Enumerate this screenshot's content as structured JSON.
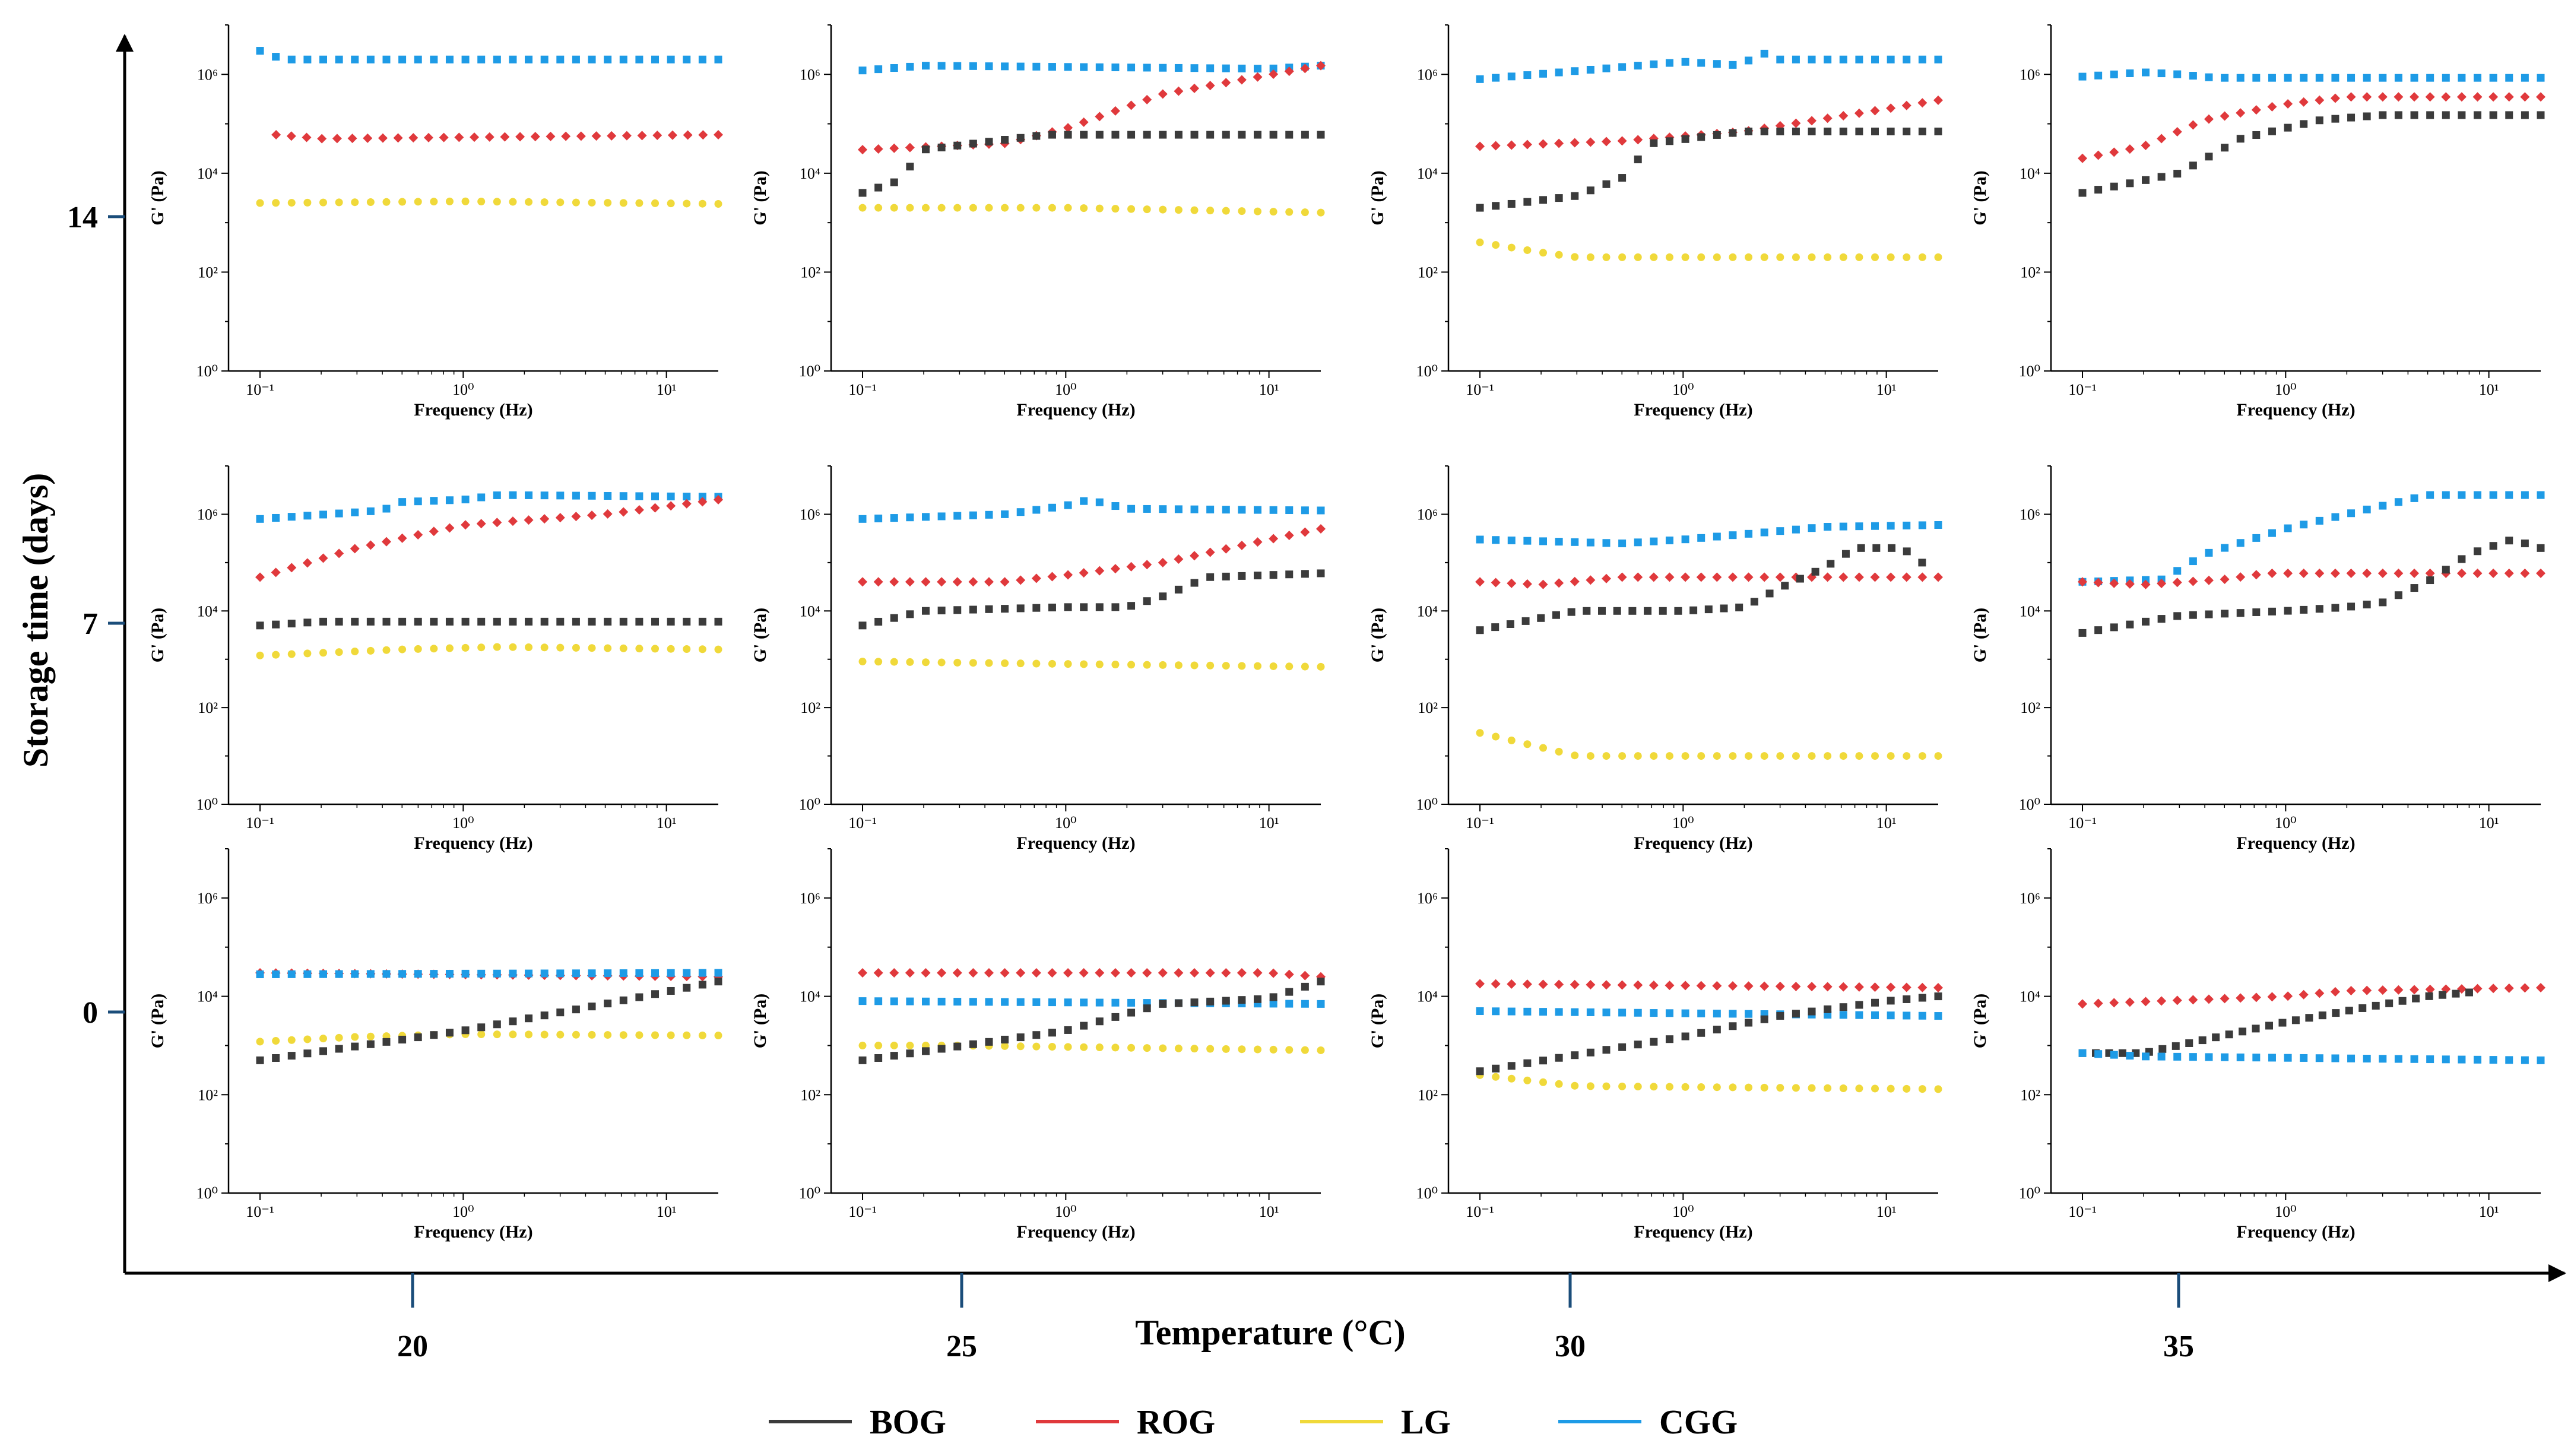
{
  "figure": {
    "ylabel": "Storage time (days)",
    "xlabel": "Temperature  (°C)",
    "storage_ticks": [
      "14",
      "7",
      "0"
    ],
    "temperature_ticks": [
      "20",
      "25",
      "30",
      "35"
    ]
  },
  "legend": [
    {
      "name": "BOG",
      "color": "#3b3b3b"
    },
    {
      "name": "ROG",
      "color": "#e0393c"
    },
    {
      "name": "LG",
      "color": "#f0d93a"
    },
    {
      "name": "CGG",
      "color": "#1e9be6"
    }
  ],
  "colors": {
    "BOG": "#3b3b3b",
    "ROG": "#e0393c",
    "LG": "#f0d93a",
    "CGG": "#1e9be6"
  },
  "marker_styles": {
    "BOG": "square",
    "ROG": "diamond",
    "LG": "circle",
    "CGG": "square"
  },
  "chart_data": [
    {
      "type": "scatter",
      "storage_time": 14,
      "temperature": 20,
      "title": "",
      "xlabel": "Frequency (Hz)",
      "ylabel": "G' (Pa)",
      "xscale": "log",
      "yscale": "log",
      "xlim": [
        0.07,
        18
      ],
      "ylim": [
        1,
        10000000
      ],
      "series": [
        {
          "name": "CGG",
          "x": [
            0.1,
            0.13,
            18
          ],
          "y": [
            3000000,
            2000000,
            2000000
          ]
        },
        {
          "name": "ROG",
          "x": [
            0.12,
            0.2,
            18
          ],
          "y": [
            60000,
            50000,
            60000
          ]
        },
        {
          "name": "LG",
          "x": [
            0.1,
            1.0,
            18
          ],
          "y": [
            2500,
            2700,
            2400
          ]
        }
      ]
    },
    {
      "type": "scatter",
      "storage_time": 14,
      "temperature": 25,
      "title": "",
      "xlabel": "Frequency (Hz)",
      "ylabel": "G' (Pa)",
      "xscale": "log",
      "yscale": "log",
      "xlim": [
        0.07,
        18
      ],
      "ylim": [
        1,
        10000000
      ],
      "series": [
        {
          "name": "CGG",
          "x": [
            0.1,
            0.2,
            10,
            18
          ],
          "y": [
            1200000,
            1500000,
            1300000,
            1500000
          ]
        },
        {
          "name": "ROG",
          "x": [
            0.1,
            0.5,
            1,
            3,
            18
          ],
          "y": [
            30000,
            40000,
            80000,
            400000,
            1500000
          ]
        },
        {
          "name": "BOG",
          "x": [
            0.1,
            0.15,
            0.2,
            0.8,
            18
          ],
          "y": [
            4000,
            7000,
            30000,
            60000,
            60000
          ]
        },
        {
          "name": "LG",
          "x": [
            0.1,
            1,
            18
          ],
          "y": [
            2000,
            2000,
            1600
          ]
        }
      ]
    },
    {
      "type": "scatter",
      "storage_time": 14,
      "temperature": 30,
      "title": "",
      "xlabel": "Frequency (Hz)",
      "ylabel": "G' (Pa)",
      "xscale": "log",
      "yscale": "log",
      "xlim": [
        0.07,
        18
      ],
      "ylim": [
        1,
        10000000
      ],
      "series": [
        {
          "name": "CGG",
          "x": [
            0.1,
            0.4,
            1,
            2,
            2.3,
            3,
            18
          ],
          "y": [
            800000,
            1300000,
            1800000,
            1500000,
            3000000,
            2000000,
            2000000
          ]
        },
        {
          "name": "ROG",
          "x": [
            0.1,
            0.5,
            2,
            10,
            18
          ],
          "y": [
            35000,
            45000,
            70000,
            200000,
            300000
          ]
        },
        {
          "name": "BOG",
          "x": [
            0.1,
            0.3,
            0.5,
            0.7,
            2,
            18
          ],
          "y": [
            2000,
            3500,
            8000,
            40000,
            70000,
            70000
          ]
        },
        {
          "name": "LG",
          "x": [
            0.1,
            0.2,
            0.3,
            18
          ],
          "y": [
            400,
            250,
            200,
            200
          ]
        }
      ]
    },
    {
      "type": "scatter",
      "storage_time": 14,
      "temperature": 35,
      "title": "",
      "xlabel": "Frequency (Hz)",
      "ylabel": "G' (Pa)",
      "xscale": "log",
      "yscale": "log",
      "xlim": [
        0.07,
        18
      ],
      "ylim": [
        1,
        10000000
      ],
      "series": [
        {
          "name": "CGG",
          "x": [
            0.1,
            0.2,
            0.3,
            0.45,
            18
          ],
          "y": [
            900000,
            1100000,
            1000000,
            850000,
            850000
          ]
        },
        {
          "name": "ROG",
          "x": [
            0.1,
            0.2,
            0.4,
            1,
            2,
            18
          ],
          "y": [
            20000,
            35000,
            120000,
            250000,
            350000,
            350000
          ]
        },
        {
          "name": "BOG",
          "x": [
            0.1,
            0.3,
            0.6,
            1.5,
            3,
            18
          ],
          "y": [
            4000,
            10000,
            50000,
            120000,
            150000,
            150000
          ]
        }
      ]
    },
    {
      "type": "scatter",
      "storage_time": 7,
      "temperature": 20,
      "title": "",
      "xlabel": "Frequency (Hz)",
      "ylabel": "G' (Pa)",
      "xscale": "log",
      "yscale": "log",
      "xlim": [
        0.07,
        18
      ],
      "ylim": [
        1,
        10000000
      ],
      "series": [
        {
          "name": "CGG",
          "x": [
            0.1,
            0.4,
            0.5,
            1,
            1.5,
            18
          ],
          "y": [
            800000,
            1200000,
            1800000,
            2000000,
            2500000,
            2300000
          ]
        },
        {
          "name": "ROG",
          "x": [
            0.1,
            0.3,
            1,
            5,
            18
          ],
          "y": [
            50000,
            200000,
            600000,
            1000000,
            2000000
          ]
        },
        {
          "name": "BOG",
          "x": [
            0.1,
            0.2,
            18
          ],
          "y": [
            5000,
            6000,
            6000
          ]
        },
        {
          "name": "LG",
          "x": [
            0.1,
            0.5,
            1.5,
            18
          ],
          "y": [
            1200,
            1600,
            1800,
            1600
          ]
        }
      ]
    },
    {
      "type": "scatter",
      "storage_time": 7,
      "temperature": 25,
      "title": "",
      "xlabel": "Frequency (Hz)",
      "ylabel": "G' (Pa)",
      "xscale": "log",
      "yscale": "log",
      "xlim": [
        0.07,
        18
      ],
      "ylim": [
        1,
        10000000
      ],
      "series": [
        {
          "name": "CGG",
          "x": [
            0.1,
            0.5,
            1,
            1.3,
            2,
            18
          ],
          "y": [
            800000,
            1000000,
            1500000,
            2000000,
            1300000,
            1200000
          ]
        },
        {
          "name": "ROG",
          "x": [
            0.1,
            0.5,
            1,
            3,
            10,
            18
          ],
          "y": [
            40000,
            40000,
            55000,
            100000,
            300000,
            500000
          ]
        },
        {
          "name": "BOG",
          "x": [
            0.1,
            0.2,
            1,
            2,
            3,
            5,
            18
          ],
          "y": [
            5000,
            10000,
            12000,
            12000,
            20000,
            50000,
            60000
          ]
        },
        {
          "name": "LG",
          "x": [
            0.1,
            1,
            18
          ],
          "y": [
            900,
            800,
            700
          ]
        }
      ]
    },
    {
      "type": "scatter",
      "storage_time": 7,
      "temperature": 30,
      "title": "",
      "xlabel": "Frequency (Hz)",
      "ylabel": "G' (Pa)",
      "xscale": "log",
      "yscale": "log",
      "xlim": [
        0.07,
        18
      ],
      "ylim": [
        1,
        10000000
      ],
      "series": [
        {
          "name": "CGG",
          "x": [
            0.1,
            0.5,
            1,
            3,
            5,
            18
          ],
          "y": [
            300000,
            250000,
            300000,
            450000,
            550000,
            600000
          ]
        },
        {
          "name": "ROG",
          "x": [
            0.1,
            0.2,
            0.5,
            18
          ],
          "y": [
            40000,
            35000,
            50000,
            50000
          ]
        },
        {
          "name": "BOG",
          "x": [
            0.1,
            0.3,
            1,
            2,
            3,
            5,
            7,
            12,
            15
          ],
          "y": [
            4000,
            10000,
            10000,
            12000,
            30000,
            80000,
            200000,
            200000,
            100000
          ]
        },
        {
          "name": "LG",
          "x": [
            0.1,
            0.2,
            0.3,
            18
          ],
          "y": [
            30,
            15,
            10,
            10
          ]
        }
      ]
    },
    {
      "type": "scatter",
      "storage_time": 7,
      "temperature": 35,
      "title": "",
      "xlabel": "Frequency (Hz)",
      "ylabel": "G' (Pa)",
      "xscale": "log",
      "yscale": "log",
      "xlim": [
        0.07,
        18
      ],
      "ylim": [
        1,
        10000000
      ],
      "series": [
        {
          "name": "CGG",
          "x": [
            0.1,
            0.25,
            0.4,
            1,
            3,
            5,
            18
          ],
          "y": [
            40000,
            45000,
            150000,
            500000,
            1500000,
            2500000,
            2500000
          ]
        },
        {
          "name": "ROG",
          "x": [
            0.1,
            0.2,
            0.5,
            0.8,
            18
          ],
          "y": [
            40000,
            35000,
            45000,
            60000,
            60000
          ]
        },
        {
          "name": "BOG",
          "x": [
            0.1,
            0.3,
            1,
            2,
            3,
            5,
            8,
            13,
            18
          ],
          "y": [
            3500,
            8000,
            10000,
            12000,
            15000,
            40000,
            150000,
            300000,
            200000
          ]
        }
      ]
    },
    {
      "type": "scatter",
      "storage_time": 0,
      "temperature": 20,
      "title": "",
      "xlabel": "Frequency (Hz)",
      "ylabel": "G' (Pa)",
      "xscale": "log",
      "yscale": "log",
      "xlim": [
        0.07,
        18
      ],
      "ylim": [
        1,
        10000000
      ],
      "series": [
        {
          "name": "ROG",
          "x": [
            0.1,
            18
          ],
          "y": [
            30000,
            25000
          ]
        },
        {
          "name": "CGG",
          "x": [
            0.1,
            18
          ],
          "y": [
            28000,
            30000
          ]
        },
        {
          "name": "LG",
          "x": [
            0.1,
            0.3,
            1,
            18
          ],
          "y": [
            1200,
            1500,
            1700,
            1600
          ]
        },
        {
          "name": "BOG",
          "x": [
            0.1,
            1,
            5,
            18
          ],
          "y": [
            500,
            2000,
            7000,
            20000
          ]
        }
      ]
    },
    {
      "type": "scatter",
      "storage_time": 0,
      "temperature": 25,
      "title": "",
      "xlabel": "Frequency (Hz)",
      "ylabel": "G' (Pa)",
      "xscale": "log",
      "yscale": "log",
      "xlim": [
        0.07,
        18
      ],
      "ylim": [
        1,
        10000000
      ],
      "series": [
        {
          "name": "ROG",
          "x": [
            0.1,
            10,
            18
          ],
          "y": [
            30000,
            30000,
            25000
          ]
        },
        {
          "name": "CGG",
          "x": [
            0.1,
            18
          ],
          "y": [
            8000,
            7000
          ]
        },
        {
          "name": "LG",
          "x": [
            0.1,
            0.3,
            18
          ],
          "y": [
            1000,
            1000,
            800
          ]
        },
        {
          "name": "BOG",
          "x": [
            0.1,
            1,
            3,
            10,
            18
          ],
          "y": [
            500,
            2000,
            7000,
            9000,
            20000
          ]
        }
      ]
    },
    {
      "type": "scatter",
      "storage_time": 0,
      "temperature": 30,
      "title": "",
      "xlabel": "Frequency (Hz)",
      "ylabel": "G' (Pa)",
      "xscale": "log",
      "yscale": "log",
      "xlim": [
        0.07,
        18
      ],
      "ylim": [
        1,
        10000000
      ],
      "series": [
        {
          "name": "ROG",
          "x": [
            0.1,
            18
          ],
          "y": [
            18000,
            15000
          ]
        },
        {
          "name": "CGG",
          "x": [
            0.1,
            18
          ],
          "y": [
            5000,
            4000
          ]
        },
        {
          "name": "LG",
          "x": [
            0.1,
            0.3,
            18
          ],
          "y": [
            250,
            150,
            130
          ]
        },
        {
          "name": "BOG",
          "x": [
            0.1,
            1,
            3,
            10,
            18
          ],
          "y": [
            300,
            1500,
            4000,
            8000,
            10000
          ]
        }
      ]
    },
    {
      "type": "scatter",
      "storage_time": 0,
      "temperature": 35,
      "title": "",
      "xlabel": "Frequency (Hz)",
      "ylabel": "G' (Pa)",
      "xscale": "log",
      "yscale": "log",
      "xlim": [
        0.07,
        18
      ],
      "ylim": [
        1,
        10000000
      ],
      "series": [
        {
          "name": "ROG",
          "x": [
            0.1,
            1,
            2,
            18
          ],
          "y": [
            7000,
            10000,
            13000,
            15000
          ]
        },
        {
          "name": "BOG",
          "x": [
            0.1,
            0.15,
            0.2,
            1,
            5,
            8
          ],
          "y": [
            700,
            700,
            700,
            3000,
            10000,
            12000
          ]
        },
        {
          "name": "CGG",
          "x": [
            0.1,
            0.2,
            18
          ],
          "y": [
            700,
            600,
            500
          ]
        }
      ]
    }
  ]
}
